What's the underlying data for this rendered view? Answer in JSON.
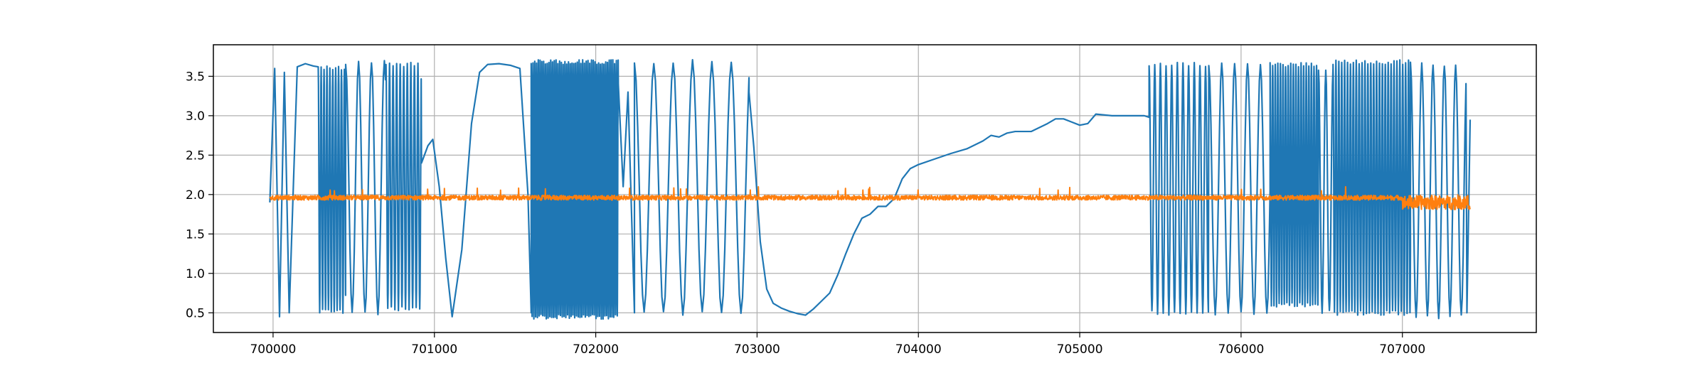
{
  "chart_data": {
    "type": "line",
    "title": "",
    "xlabel": "",
    "ylabel": "",
    "xlim": [
      699630,
      707830
    ],
    "ylim": [
      0.25,
      3.9
    ],
    "grid": true,
    "legend": "none",
    "xticks": [
      700000,
      701000,
      702000,
      703000,
      704000,
      705000,
      706000,
      707000
    ],
    "yticks": [
      0.5,
      1.0,
      1.5,
      2.0,
      2.5,
      3.0,
      3.5
    ],
    "xtick_labels": [
      "700000",
      "701000",
      "702000",
      "703000",
      "704000",
      "705000",
      "706000",
      "707000"
    ],
    "ytick_labels": [
      "0.5",
      "1.0",
      "1.5",
      "2.0",
      "2.5",
      "3.0",
      "3.5"
    ],
    "colors": {
      "series1": "#1f77b4",
      "series2": "#ff7f0e",
      "grid": "#b0b0b0",
      "axes": "#000000"
    },
    "series": [
      {
        "color": "#1f77b4",
        "segments": [
          {
            "kind": "points",
            "x": [
              699980,
              700010,
              700040,
              700070,
              700100,
              700150,
              700200,
              700250,
              700280
            ],
            "y": [
              1.9,
              3.6,
              0.45,
              3.55,
              0.5,
              3.62,
              3.66,
              3.63,
              3.62
            ]
          },
          {
            "kind": "osc",
            "x0": 700280,
            "x1": 700450,
            "period": 18,
            "min": 0.52,
            "max": 3.6
          },
          {
            "kind": "osc",
            "x0": 700450,
            "x1": 700700,
            "period": 80,
            "min": 0.5,
            "max": 3.68
          },
          {
            "kind": "osc",
            "x0": 700700,
            "x1": 700920,
            "period": 22,
            "min": 0.55,
            "max": 3.65
          },
          {
            "kind": "points",
            "x": [
              700920,
              700960,
              700990,
              701030,
              701070,
              701110,
              701170,
              701230,
              701280,
              701330,
              701400,
              701470,
              701530,
              701580,
              701600
            ],
            "y": [
              2.4,
              2.62,
              2.7,
              2.1,
              1.2,
              0.45,
              1.3,
              2.9,
              3.55,
              3.65,
              3.66,
              3.64,
              3.6,
              2.0,
              0.5
            ]
          },
          {
            "kind": "osc",
            "x0": 701600,
            "x1": 702140,
            "period": 11,
            "min": 0.45,
            "max": 3.68
          },
          {
            "kind": "points",
            "x": [
              702140,
              702170,
              702200,
              702240
            ],
            "y": [
              3.4,
              2.1,
              3.3,
              0.5
            ]
          },
          {
            "kind": "osc",
            "x0": 702240,
            "x1": 702950,
            "period": 120,
            "min": 0.5,
            "max": 3.68
          },
          {
            "kind": "points",
            "x": [
              702950,
              702980,
              703020,
              703060,
              703100,
              703150,
              703200,
              703250,
              703300,
              703350,
              703400,
              703450,
              703500,
              703550,
              703600,
              703650,
              703700,
              703750,
              703800,
              703850,
              703900,
              703950,
              704000,
              704100,
              704200,
              704300,
              704400,
              704450,
              704500,
              704550,
              704600,
              704700,
              704800,
              704850,
              704900,
              704950,
              705000,
              705050,
              705100,
              705200,
              705300,
              705400,
              705430
            ],
            "y": [
              3.3,
              2.6,
              1.4,
              0.8,
              0.62,
              0.56,
              0.52,
              0.49,
              0.47,
              0.55,
              0.65,
              0.75,
              0.98,
              1.25,
              1.5,
              1.7,
              1.75,
              1.85,
              1.85,
              1.95,
              2.2,
              2.33,
              2.38,
              2.45,
              2.52,
              2.58,
              2.68,
              2.75,
              2.73,
              2.78,
              2.8,
              2.8,
              2.9,
              2.96,
              2.96,
              2.92,
              2.88,
              2.9,
              3.02,
              3.0,
              3.0,
              3.0,
              2.98
            ]
          },
          {
            "kind": "osc",
            "x0": 705430,
            "x1": 705800,
            "period": 35,
            "min": 0.5,
            "max": 3.65
          },
          {
            "kind": "osc",
            "x0": 705800,
            "x1": 706180,
            "period": 80,
            "min": 0.5,
            "max": 3.66
          },
          {
            "kind": "osc",
            "x0": 706180,
            "x1": 706480,
            "period": 16,
            "min": 0.6,
            "max": 3.65
          },
          {
            "kind": "osc",
            "x0": 706480,
            "x1": 706570,
            "period": 45,
            "min": 0.5,
            "max": 3.6
          },
          {
            "kind": "osc",
            "x0": 706570,
            "x1": 707050,
            "period": 18,
            "min": 0.5,
            "max": 3.68
          },
          {
            "kind": "osc",
            "x0": 707050,
            "x1": 707400,
            "period": 70,
            "min": 0.45,
            "max": 3.65
          },
          {
            "kind": "points",
            "x": [
              707400,
              707420
            ],
            "y": [
              0.5,
              2.95
            ]
          }
        ]
      },
      {
        "color": "#ff7f0e",
        "segments": [
          {
            "kind": "noise",
            "x0": 699980,
            "x1": 707000,
            "center": 1.96,
            "amplitude": 0.03,
            "spike_max": 2.1
          },
          {
            "kind": "noise",
            "x0": 707000,
            "x1": 707420,
            "center": 1.9,
            "amplitude": 0.09,
            "spike_max": 2.05
          }
        ]
      }
    ]
  }
}
